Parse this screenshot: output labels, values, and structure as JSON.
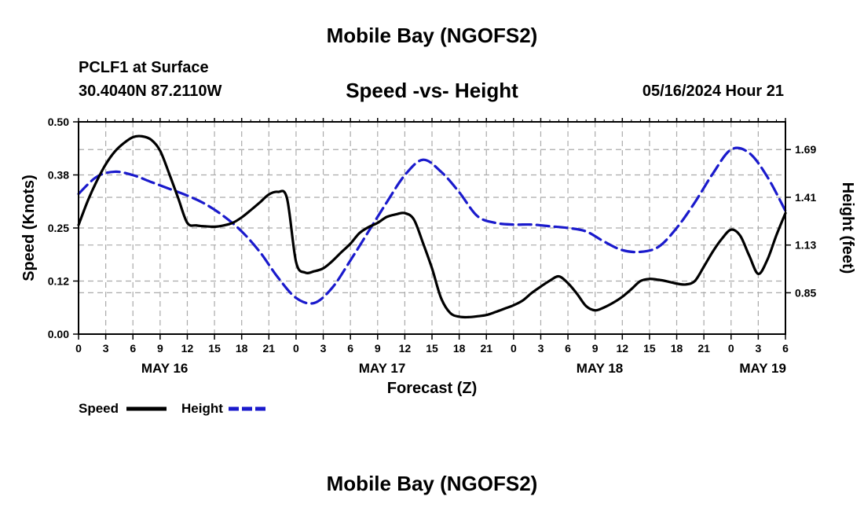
{
  "header": {
    "title": "Mobile Bay (NGOFS2)",
    "station": "PCLF1 at Surface",
    "coords": "30.4040N  87.2110W",
    "subtitle": "Speed -vs- Height",
    "date_hour": "05/16/2024 Hour 21"
  },
  "footer": {
    "title": "Mobile Bay (NGOFS2)"
  },
  "colors": {
    "speed": "#000000",
    "height": "#1a1acc",
    "grid": "#aaaaaa"
  },
  "chart_data": {
    "type": "line",
    "title": "Speed -vs- Height",
    "xlabel": "Forecast (Z)",
    "ylabel": "Speed (Knots)",
    "y2label": "Height (feet)",
    "xlim": [
      0,
      78
    ],
    "ylim": [
      0.0,
      0.5
    ],
    "y2lim": [
      0.6075,
      1.8525
    ],
    "x_ticks": [
      0,
      3,
      6,
      9,
      12,
      15,
      18,
      21,
      24,
      27,
      30,
      33,
      36,
      39,
      42,
      45,
      48,
      51,
      54,
      57,
      60,
      63,
      66,
      69,
      72,
      75,
      78
    ],
    "x_tick_labels": [
      "0",
      "3",
      "6",
      "9",
      "12",
      "15",
      "18",
      "21",
      "0",
      "3",
      "6",
      "9",
      "12",
      "15",
      "18",
      "21",
      "0",
      "3",
      "6",
      "9",
      "12",
      "15",
      "18",
      "21",
      "0",
      "3",
      "6"
    ],
    "day_labels": [
      {
        "x": 9.5,
        "label": "MAY 16"
      },
      {
        "x": 33.5,
        "label": "MAY 17"
      },
      {
        "x": 57.5,
        "label": "MAY 18"
      },
      {
        "x": 75.5,
        "label": "MAY 19"
      }
    ],
    "y_ticks": [
      0.0,
      0.125,
      0.25,
      0.375,
      0.5
    ],
    "y_tick_labels": [
      "0.00",
      "0.12",
      "0.25",
      "0.38",
      "0.50"
    ],
    "y2_ticks": [
      0.85,
      1.13,
      1.41,
      1.69
    ],
    "y2_tick_labels": [
      "0.85",
      "1.13",
      "1.41",
      "1.69"
    ],
    "grid": true,
    "legend": {
      "position": "bottom-left",
      "speed_label": "Speed",
      "height_label": "Height"
    },
    "series": [
      {
        "name": "Speed",
        "axis": "left",
        "style": "solid",
        "x": [
          0,
          1,
          2,
          3,
          4,
          5,
          6,
          7,
          8,
          9,
          10,
          11,
          12,
          13,
          14,
          15,
          16,
          17,
          18,
          19,
          20,
          21,
          22,
          23,
          24,
          25,
          26,
          27,
          28,
          29,
          30,
          31,
          32,
          33,
          34,
          35,
          36,
          37,
          38,
          39,
          40,
          41,
          42,
          43,
          44,
          45,
          46,
          47,
          48,
          49,
          50,
          51,
          52,
          53,
          54,
          55,
          56,
          57,
          58,
          59,
          60,
          61,
          62,
          63,
          64,
          65,
          66,
          67,
          68,
          69,
          70,
          71,
          72,
          73,
          74,
          75,
          76,
          77,
          78
        ],
        "values": [
          0.257,
          0.313,
          0.36,
          0.4,
          0.43,
          0.45,
          0.464,
          0.466,
          0.458,
          0.432,
          0.378,
          0.32,
          0.262,
          0.256,
          0.254,
          0.253,
          0.256,
          0.262,
          0.275,
          0.292,
          0.31,
          0.329,
          0.335,
          0.32,
          0.17,
          0.145,
          0.148,
          0.155,
          0.172,
          0.193,
          0.213,
          0.238,
          0.252,
          0.262,
          0.276,
          0.282,
          0.285,
          0.27,
          0.215,
          0.155,
          0.085,
          0.05,
          0.041,
          0.04,
          0.042,
          0.045,
          0.052,
          0.06,
          0.068,
          0.079,
          0.097,
          0.112,
          0.126,
          0.136,
          0.12,
          0.095,
          0.066,
          0.056,
          0.063,
          0.074,
          0.088,
          0.106,
          0.125,
          0.13,
          0.128,
          0.124,
          0.119,
          0.117,
          0.125,
          0.159,
          0.195,
          0.225,
          0.246,
          0.232,
          0.185,
          0.142,
          0.175,
          0.233,
          0.285
        ]
      },
      {
        "name": "Height",
        "axis": "right",
        "style": "dashed",
        "x": [
          0,
          2,
          4,
          6,
          8,
          10,
          12,
          14,
          16,
          18,
          20,
          22,
          24,
          26,
          28,
          30,
          32,
          34,
          36,
          38,
          40,
          42,
          44,
          46,
          48,
          50,
          52,
          54,
          56,
          58,
          60,
          62,
          64,
          66,
          68,
          70,
          72,
          74,
          76,
          78
        ],
        "values": [
          1.43,
          1.53,
          1.56,
          1.54,
          1.5,
          1.46,
          1.42,
          1.37,
          1.3,
          1.21,
          1.09,
          0.94,
          0.82,
          0.79,
          0.88,
          1.04,
          1.21,
          1.38,
          1.54,
          1.63,
          1.56,
          1.44,
          1.3,
          1.26,
          1.25,
          1.25,
          1.24,
          1.23,
          1.21,
          1.15,
          1.1,
          1.09,
          1.12,
          1.23,
          1.38,
          1.55,
          1.69,
          1.67,
          1.53,
          1.33
        ]
      }
    ]
  }
}
